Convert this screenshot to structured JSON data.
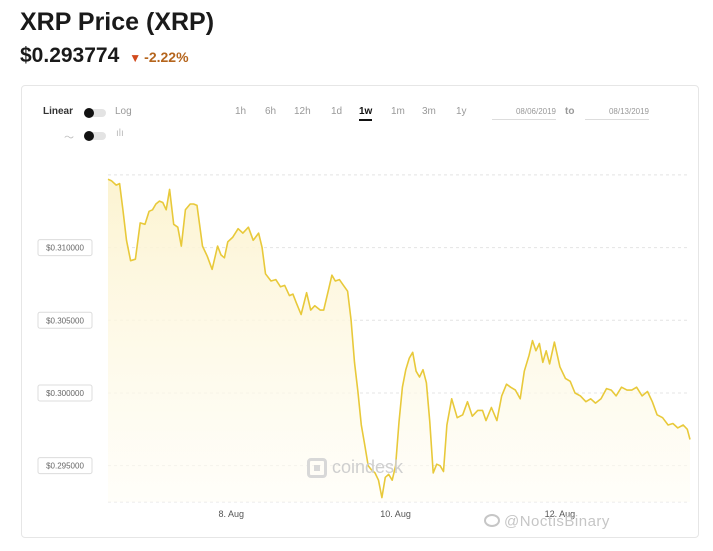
{
  "header": {
    "title": "XRP Price (XRP)",
    "price": "$0.293774",
    "change": "-2.22%",
    "change_arrow": "▼"
  },
  "controls": {
    "scale_linear": "Linear",
    "scale_log": "Log",
    "timeframes": [
      "1h",
      "6h",
      "12h",
      "1d",
      "1w",
      "1m",
      "3m",
      "1y"
    ],
    "active_timeframe": "1w",
    "date_from": "08/06/2019",
    "date_to_label": "to",
    "date_to": "08/13/2019"
  },
  "watermark": {
    "brand": "coindesk",
    "social": "@NoctisBinary"
  },
  "colors": {
    "line": "#e8c93a",
    "fill_top": "#fcf3cf",
    "change": "#b5651d",
    "arrow": "#d24a1c"
  },
  "chart_data": {
    "type": "area",
    "title": "",
    "xlabel": "",
    "ylabel": "",
    "ylim": [
      0.2925,
      0.3152
    ],
    "xlim": [
      0,
      8.5
    ],
    "x_unit": "days after 2019-08-06 (approx.)",
    "y_ticks": [
      {
        "value": 0.31,
        "label": "$0.310000"
      },
      {
        "value": 0.305,
        "label": "$0.305000"
      },
      {
        "value": 0.3,
        "label": "$0.300000"
      },
      {
        "value": 0.295,
        "label": "$0.295000"
      }
    ],
    "x_ticks": [
      {
        "value": 1.8,
        "label": "8. Aug"
      },
      {
        "value": 4.2,
        "label": "10. Aug"
      },
      {
        "value": 6.6,
        "label": "12. Aug"
      }
    ],
    "grid": true,
    "x": [
      0.0,
      0.05,
      0.12,
      0.17,
      0.22,
      0.27,
      0.33,
      0.4,
      0.47,
      0.54,
      0.6,
      0.65,
      0.7,
      0.75,
      0.8,
      0.85,
      0.9,
      0.96,
      1.02,
      1.07,
      1.13,
      1.2,
      1.25,
      1.3,
      1.38,
      1.45,
      1.52,
      1.6,
      1.65,
      1.7,
      1.75,
      1.82,
      1.9,
      1.97,
      2.05,
      2.12,
      2.2,
      2.25,
      2.3,
      2.38,
      2.45,
      2.52,
      2.58,
      2.65,
      2.7,
      2.75,
      2.82,
      2.9,
      2.96,
      3.02,
      3.1,
      3.15,
      3.22,
      3.27,
      3.32,
      3.38,
      3.44,
      3.5,
      3.55,
      3.6,
      3.65,
      3.7,
      3.75,
      3.8,
      3.85,
      3.9,
      3.95,
      4.0,
      4.05,
      4.1,
      4.15,
      4.2,
      4.25,
      4.3,
      4.35,
      4.4,
      4.45,
      4.5,
      4.55,
      4.6,
      4.65,
      4.7,
      4.75,
      4.8,
      4.85,
      4.9,
      4.95,
      5.02,
      5.1,
      5.18,
      5.25,
      5.32,
      5.4,
      5.47,
      5.52,
      5.6,
      5.68,
      5.75,
      5.82,
      5.88,
      5.95,
      6.02,
      6.08,
      6.15,
      6.2,
      6.25,
      6.3,
      6.35,
      6.4,
      6.45,
      6.52,
      6.6,
      6.68,
      6.75,
      6.82,
      6.9,
      6.98,
      7.05,
      7.12,
      7.2,
      7.28,
      7.35,
      7.42,
      7.5,
      7.58,
      7.65,
      7.72,
      7.8,
      7.88,
      7.95,
      8.02,
      8.1,
      8.18,
      8.25,
      8.32,
      8.4,
      8.46,
      8.5
    ],
    "values": [
      0.3147,
      0.3146,
      0.3143,
      0.3144,
      0.3125,
      0.3105,
      0.3091,
      0.3092,
      0.3117,
      0.3116,
      0.3125,
      0.3126,
      0.313,
      0.3132,
      0.3131,
      0.3126,
      0.314,
      0.3116,
      0.3114,
      0.3101,
      0.3126,
      0.313,
      0.313,
      0.3129,
      0.3101,
      0.3094,
      0.3085,
      0.3101,
      0.3095,
      0.3093,
      0.3104,
      0.3107,
      0.3113,
      0.311,
      0.3114,
      0.3105,
      0.311,
      0.31,
      0.3082,
      0.3077,
      0.3078,
      0.3073,
      0.3074,
      0.3067,
      0.3068,
      0.3062,
      0.3054,
      0.3069,
      0.3057,
      0.306,
      0.3057,
      0.3057,
      0.3071,
      0.3081,
      0.3077,
      0.3078,
      0.3074,
      0.307,
      0.305,
      0.3021,
      0.3001,
      0.2978,
      0.2964,
      0.295,
      0.2947,
      0.2945,
      0.294,
      0.2928,
      0.2942,
      0.2944,
      0.294,
      0.295,
      0.298,
      0.3004,
      0.3016,
      0.3024,
      0.3028,
      0.3015,
      0.3011,
      0.3016,
      0.3007,
      0.298,
      0.2945,
      0.2951,
      0.295,
      0.2946,
      0.2978,
      0.2996,
      0.2983,
      0.2985,
      0.2994,
      0.2984,
      0.2988,
      0.2988,
      0.2981,
      0.299,
      0.2981,
      0.2998,
      0.3006,
      0.3004,
      0.3002,
      0.2996,
      0.3015,
      0.3026,
      0.3036,
      0.3029,
      0.3034,
      0.3021,
      0.3029,
      0.302,
      0.3035,
      0.3018,
      0.301,
      0.3008,
      0.3,
      0.2998,
      0.2994,
      0.2996,
      0.2993,
      0.2996,
      0.3003,
      0.3002,
      0.2998,
      0.3004,
      0.3002,
      0.3002,
      0.3004,
      0.2998,
      0.3001,
      0.2994,
      0.2985,
      0.2983,
      0.2978,
      0.2979,
      0.2976,
      0.2978,
      0.2975,
      0.2968
    ]
  }
}
